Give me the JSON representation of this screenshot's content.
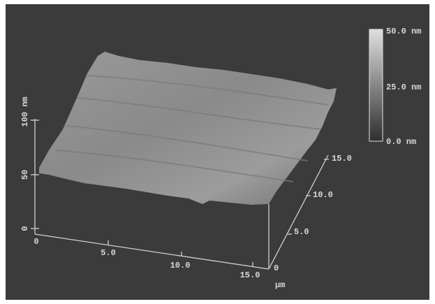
{
  "colorbar_labels": [
    "50.0 nm",
    "25.0 nm",
    "0.0 nm"
  ],
  "z_axis_ticks": [
    "100 nm",
    "50",
    "0"
  ],
  "x_axis_ticks": [
    "0",
    "5.0",
    "10.0",
    "15.0"
  ],
  "y_axis_ticks": [
    "0",
    "5.0",
    "10.0",
    "15.0"
  ],
  "unit_label": "µm"
}
